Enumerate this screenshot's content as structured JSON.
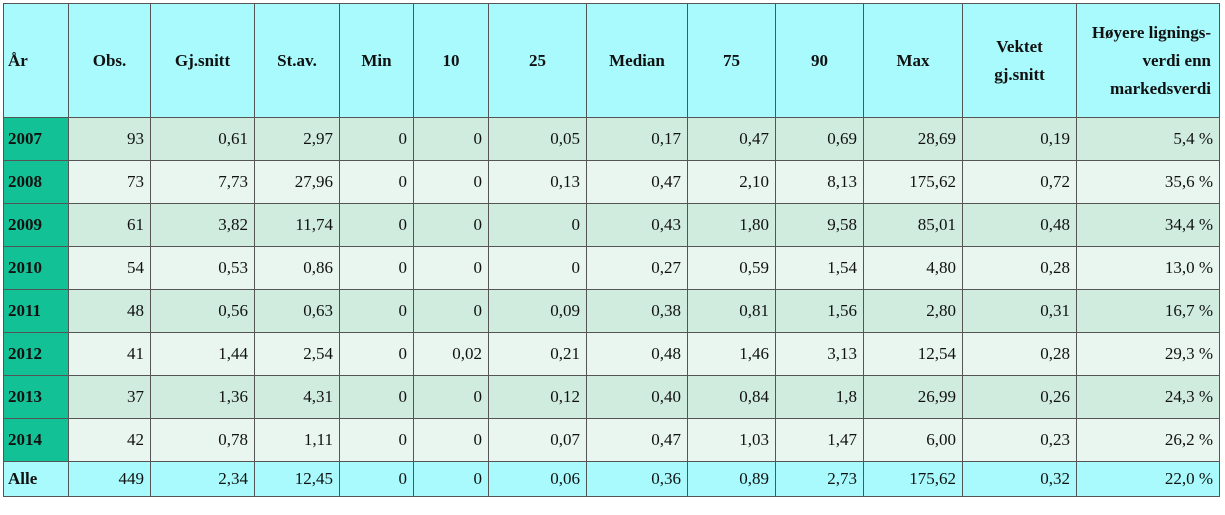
{
  "table": {
    "headers": [
      "År",
      "Obs.",
      "Gj.snitt",
      "St.av.",
      "Min",
      "10",
      "25",
      "Median",
      "75",
      "90",
      "Max",
      "Vektet gj.snitt",
      "Høyere lignings-verdi enn markedsverdi"
    ],
    "header_lines": {
      "vektet": [
        "Vektet",
        "gj.snitt"
      ],
      "hoyere": [
        "Høyere lignings-",
        "verdi enn",
        "markedsverdi"
      ]
    },
    "rows": [
      [
        "2007",
        "93",
        "0,61",
        "2,97",
        "0",
        "0",
        "0,05",
        "0,17",
        "0,47",
        "0,69",
        "28,69",
        "0,19",
        "5,4 %"
      ],
      [
        "2008",
        "73",
        "7,73",
        "27,96",
        "0",
        "0",
        "0,13",
        "0,47",
        "2,10",
        "8,13",
        "175,62",
        "0,72",
        "35,6 %"
      ],
      [
        "2009",
        "61",
        "3,82",
        "11,74",
        "0",
        "0",
        "0",
        "0,43",
        "1,80",
        "9,58",
        "85,01",
        "0,48",
        "34,4 %"
      ],
      [
        "2010",
        "54",
        "0,53",
        "0,86",
        "0",
        "0",
        "0",
        "0,27",
        "0,59",
        "1,54",
        "4,80",
        "0,28",
        "13,0 %"
      ],
      [
        "2011",
        "48",
        "0,56",
        "0,63",
        "0",
        "0",
        "0,09",
        "0,38",
        "0,81",
        "1,56",
        "2,80",
        "0,31",
        "16,7 %"
      ],
      [
        "2012",
        "41",
        "1,44",
        "2,54",
        "0",
        "0,02",
        "0,21",
        "0,48",
        "1,46",
        "3,13",
        "12,54",
        "0,28",
        "29,3 %"
      ],
      [
        "2013",
        "37",
        "1,36",
        "4,31",
        "0",
        "0",
        "0,12",
        "0,40",
        "0,84",
        "1,8",
        "26,99",
        "0,26",
        "24,3 %"
      ],
      [
        "2014",
        "42",
        "0,78",
        "1,11",
        "0",
        "0",
        "0,07",
        "0,47",
        "1,03",
        "1,47",
        "6,00",
        "0,23",
        "26,2 %"
      ],
      [
        "Alle",
        "449",
        "2,34",
        "12,45",
        "0",
        "0",
        "0,06",
        "0,36",
        "0,89",
        "2,73",
        "175,62",
        "0,32",
        "22,0 %"
      ]
    ]
  },
  "colors": {
    "header_bg": "#a8fafc",
    "year_cell_bg": "#12c296",
    "row_odd_bg": "#d0ecdf",
    "row_even_bg": "#e8f6ef"
  }
}
